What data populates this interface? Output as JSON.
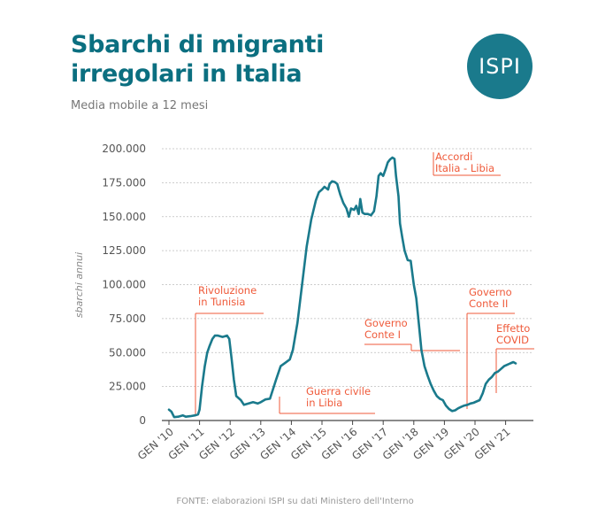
{
  "header": {
    "title": "Sbarchi di migranti irregolari in Italia",
    "subtitle": "Media mobile a 12 mesi",
    "logo": "ISPI"
  },
  "footer": {
    "source": "FONTE: elaborazioni ISPI su dati Ministero dell'Interno"
  },
  "colors": {
    "title": "#0b6f80",
    "line": "#1a7a8c",
    "annotation": "#ef5a3a",
    "grid": "#bdbdbd"
  },
  "chart_data": {
    "type": "line",
    "title": "Sbarchi di migranti irregolari in Italia",
    "subtitle": "Media mobile a 12 mesi",
    "ylabel": "sbarchi annui",
    "xlabel": "",
    "ylim": [
      0,
      200000
    ],
    "xlim": [
      2010,
      2021.4
    ],
    "grid": true,
    "y_ticks": [
      {
        "value": 0,
        "label": "0"
      },
      {
        "value": 25000,
        "label": "25.000"
      },
      {
        "value": 50000,
        "label": "50.000"
      },
      {
        "value": 75000,
        "label": "75.000"
      },
      {
        "value": 100000,
        "label": "100.000"
      },
      {
        "value": 125000,
        "label": "125.000"
      },
      {
        "value": 150000,
        "label": "150.000"
      },
      {
        "value": 175000,
        "label": "175.000"
      },
      {
        "value": 200000,
        "label": "200.000"
      }
    ],
    "x_ticks": [
      {
        "value": 2010,
        "label": "GEN '10"
      },
      {
        "value": 2011,
        "label": "GEN '11"
      },
      {
        "value": 2012,
        "label": "GEN '12"
      },
      {
        "value": 2013,
        "label": "GEN '13"
      },
      {
        "value": 2014,
        "label": "GEN '14"
      },
      {
        "value": 2015,
        "label": "GEN '15"
      },
      {
        "value": 2016,
        "label": "GEN '16"
      },
      {
        "value": 2017,
        "label": "GEN '17"
      },
      {
        "value": 2018,
        "label": "GEN '18"
      },
      {
        "value": 2019,
        "label": "GEN '19"
      },
      {
        "value": 2020,
        "label": "GEN '20"
      },
      {
        "value": 2021,
        "label": "GEN '21"
      }
    ],
    "series": [
      {
        "x": [
          2010.0,
          2010.08,
          2010.17,
          2010.3,
          2010.45,
          2010.55,
          2010.7,
          2010.85,
          2010.95,
          2011.0,
          2011.08,
          2011.17,
          2011.25,
          2011.33,
          2011.42,
          2011.5,
          2011.6,
          2011.75,
          2011.9,
          2011.97,
          2012.05,
          2012.12,
          2012.2,
          2012.35,
          2012.45,
          2012.6,
          2012.75,
          2012.9,
          2013.0,
          2013.15,
          2013.3,
          2013.5,
          2013.65,
          2013.8,
          2013.95,
          2014.05,
          2014.2,
          2014.35,
          2014.5,
          2014.65,
          2014.8,
          2014.9,
          2015.0,
          2015.08,
          2015.2,
          2015.25,
          2015.33,
          2015.42,
          2015.5,
          2015.55,
          2015.6,
          2015.7,
          2015.8,
          2015.88,
          2015.95,
          2016.05,
          2016.12,
          2016.2,
          2016.25,
          2016.32,
          2016.4,
          2016.5,
          2016.6,
          2016.7,
          2016.78,
          2016.85,
          2016.92,
          2017.0,
          2017.08,
          2017.15,
          2017.22,
          2017.3,
          2017.37,
          2017.42,
          2017.5,
          2017.55,
          2017.62,
          2017.7,
          2017.8,
          2017.9,
          2018.0,
          2018.08,
          2018.17,
          2018.25,
          2018.35,
          2018.45,
          2018.55,
          2018.65,
          2018.75,
          2018.85,
          2018.95,
          2019.05,
          2019.15,
          2019.25,
          2019.35,
          2019.45,
          2019.55,
          2019.65,
          2019.75,
          2019.85,
          2019.95,
          2020.05,
          2020.15,
          2020.25,
          2020.35,
          2020.45,
          2020.55,
          2020.65,
          2020.75,
          2020.85,
          2020.95,
          2021.05,
          2021.15,
          2021.25,
          2021.33
        ],
        "values": [
          8000,
          6500,
          2500,
          2800,
          3800,
          2800,
          3200,
          3800,
          4500,
          8000,
          25000,
          40000,
          50000,
          55000,
          60000,
          62500,
          62500,
          61500,
          62500,
          60000,
          45000,
          30000,
          18000,
          15000,
          11500,
          12500,
          13500,
          12500,
          13500,
          15500,
          16000,
          30000,
          40000,
          42500,
          45000,
          52000,
          72000,
          100000,
          128000,
          148000,
          162000,
          168000,
          170000,
          172000,
          170000,
          174000,
          176000,
          175500,
          174000,
          170000,
          166000,
          160000,
          156000,
          150000,
          156000,
          155000,
          158000,
          152000,
          163000,
          153000,
          152000,
          152000,
          151000,
          154000,
          165000,
          180000,
          182000,
          180000,
          185000,
          190000,
          192000,
          193500,
          192500,
          180000,
          165000,
          145000,
          135000,
          125000,
          118000,
          117500,
          100000,
          90000,
          70000,
          52000,
          40000,
          33000,
          27000,
          22000,
          18000,
          16000,
          15000,
          11000,
          8500,
          7000,
          7500,
          9000,
          10000,
          11000,
          11500,
          12500,
          13000,
          14000,
          15000,
          20000,
          27000,
          30000,
          32000,
          35000,
          36000,
          38000,
          40000,
          41000,
          42000,
          43000,
          42000
        ]
      }
    ],
    "annotations": [
      {
        "text": [
          "Rivoluzione",
          "in Tunisia"
        ],
        "x": 2011.0
      },
      {
        "text": [
          "Guerra civile",
          "in Libia"
        ],
        "x": 2013.65
      },
      {
        "text": [
          "Accordi",
          "Italia - Libia"
        ],
        "x": 2017.42
      },
      {
        "text": [
          "Governo",
          "Conte I"
        ],
        "x": 2018.45
      },
      {
        "text": [
          "Governo",
          "Conte II"
        ],
        "x": 2019.7
      },
      {
        "text": [
          "Effetto",
          "COVID"
        ],
        "x": 2020.2
      }
    ]
  }
}
